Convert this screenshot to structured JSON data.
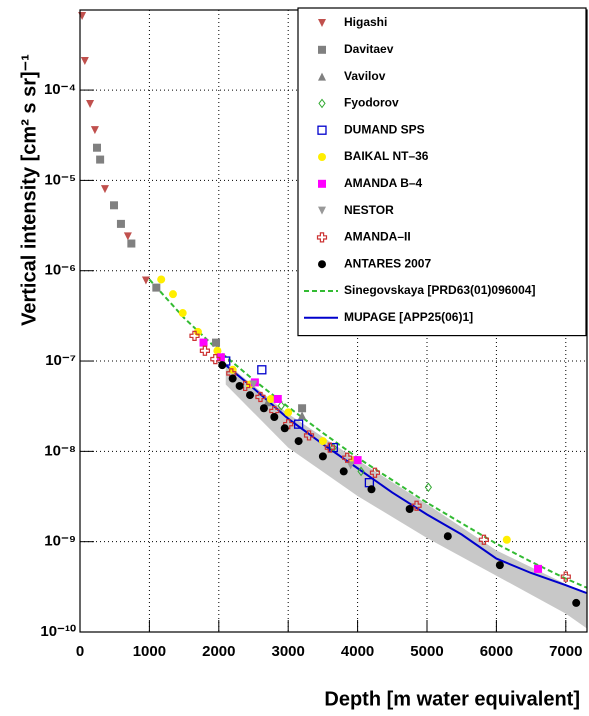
{
  "chart_data": {
    "type": "scatter",
    "xlabel": "Depth [m water equivalent]",
    "ylabel": "Vertical intensity [cm² s sr]⁻¹",
    "xlim": [
      0,
      7320
    ],
    "ylim": [
      1e-10,
      0.00077
    ],
    "log_y": true,
    "grid": true,
    "legend": "top-right",
    "xticks": [
      0,
      1000,
      2000,
      3000,
      4000,
      5000,
      6000,
      7000
    ],
    "yticks": [
      {
        "value": 1e-10,
        "label": "10⁻¹⁰"
      },
      {
        "value": 1e-09,
        "label": "10⁻⁹"
      },
      {
        "value": 1e-08,
        "label": "10⁻⁸"
      },
      {
        "value": 1e-07,
        "label": "10⁻⁷"
      },
      {
        "value": 1e-06,
        "label": "10⁻⁶"
      },
      {
        "value": 1e-05,
        "label": "10⁻⁵"
      },
      {
        "value": 0.0001,
        "label": "10⁻⁴"
      }
    ],
    "band": {
      "color": "#c8c8c8",
      "x": [
        2100,
        3000,
        4000,
        5000,
        6000,
        7000,
        7300
      ],
      "lower": [
        5.5e-08,
        1.1e-08,
        3.2e-09,
        1.1e-09,
        4.2e-10,
        1.6e-10,
        1.1e-10
      ],
      "upper": [
        9.5e-08,
        2.6e-08,
        8e-09,
        2.6e-09,
        8e-10,
        3.4e-10,
        2.6e-10
      ]
    },
    "series": [
      {
        "name": "Higashi",
        "color": "#c0504d",
        "marker": "triangle-down",
        "x": [
          30,
          70,
          145,
          215,
          360,
          690,
          950
        ],
        "values": [
          0.00066,
          0.00021,
          7e-05,
          3.6e-05,
          8e-06,
          2.4e-06,
          7.8e-07
        ]
      },
      {
        "name": "Davitaev",
        "color": "#808080",
        "marker": "square",
        "x": [
          245,
          290,
          490,
          590,
          740,
          1100,
          1960,
          3200
        ],
        "values": [
          2.3e-05,
          1.7e-05,
          5.3e-06,
          3.3e-06,
          2e-06,
          6.5e-07,
          1.6e-07,
          3e-08
        ]
      },
      {
        "name": "Vavilov",
        "color": "#808080",
        "marker": "triangle-up",
        "x": [
          1980,
          2700,
          3200
        ],
        "values": [
          1.4e-07,
          3.5e-08,
          2.5e-08
        ]
      },
      {
        "name": "Fyodorov",
        "color": "#33aa33",
        "marker": "diamond-open",
        "x": [
          2900,
          3650,
          4050,
          5020
        ],
        "values": [
          3.2e-08,
          1.1e-08,
          6e-09,
          4e-09
        ]
      },
      {
        "name": "DUMAND SPS",
        "color": "#0000cc",
        "marker": "square-open",
        "x": [
          2100,
          2620,
          3150,
          3650,
          4170
        ],
        "values": [
          1e-07,
          8e-08,
          2e-08,
          1.1e-08,
          4.5e-09
        ]
      },
      {
        "name": "BAIKAL NT–36",
        "color": "#ffee00",
        "marker": "circle",
        "x": [
          1170,
          1340,
          1480,
          1700,
          1980,
          2200,
          2450,
          2750,
          3000,
          3500,
          3950,
          6150
        ],
        "values": [
          8e-07,
          5.5e-07,
          3.4e-07,
          2.1e-07,
          1.3e-07,
          8e-08,
          5.5e-08,
          3.8e-08,
          2.7e-08,
          1.3e-08,
          8e-09,
          1.05e-09
        ]
      },
      {
        "name": "AMANDA B–4",
        "color": "#ff00ff",
        "marker": "square",
        "x": [
          1780,
          2030,
          2520,
          2850,
          4000,
          6600
        ],
        "values": [
          1.6e-07,
          1.1e-07,
          5.8e-08,
          3.8e-08,
          8e-09,
          5e-10
        ]
      },
      {
        "name": "NESTOR",
        "color": "#999999",
        "marker": "triangle-down",
        "x": [
          2500,
          3900
        ],
        "values": [
          5.5e-08,
          7e-09
        ]
      },
      {
        "name": "AMANDA–II",
        "color": "#cc3333",
        "marker": "cross-open",
        "x": [
          1650,
          1800,
          1950,
          2180,
          2380,
          2600,
          2800,
          3000,
          3300,
          3600,
          3850,
          4250,
          4850,
          5820,
          7000
        ],
        "values": [
          1.9e-07,
          1.3e-07,
          1.05e-07,
          7.3e-08,
          5.3e-08,
          4e-08,
          2.8e-08,
          2e-08,
          1.5e-08,
          1.1e-08,
          8.5e-09,
          5.8e-09,
          2.5e-09,
          1.05e-09,
          4.1e-10
        ]
      },
      {
        "name": "ANTARES 2007",
        "color": "#000000",
        "marker": "circle",
        "x": [
          2050,
          2200,
          2300,
          2450,
          2650,
          2800,
          2950,
          3150,
          3500,
          3800,
          4200,
          4750,
          5300,
          6050,
          7150
        ],
        "values": [
          9e-08,
          6.4e-08,
          5.3e-08,
          4.2e-08,
          3e-08,
          2.4e-08,
          1.8e-08,
          1.3e-08,
          8.8e-09,
          6e-09,
          3.8e-09,
          2.3e-09,
          1.15e-09,
          5.5e-10,
          2.1e-10
        ]
      },
      {
        "name": "Sinegovskaya [PRD63(01)096004]",
        "color": "#33bb33",
        "line_style": "dashed",
        "x": [
          1000,
          1500,
          2000,
          2500,
          3000,
          3500,
          4000,
          4500,
          5000,
          5500,
          6000,
          6500,
          7000,
          7300
        ],
        "values": [
          8e-07,
          3e-07,
          1.3e-07,
          6.2e-08,
          3.1e-08,
          1.6e-08,
          8.5e-09,
          4.8e-09,
          2.7e-09,
          1.6e-09,
          9.5e-10,
          6e-10,
          3.9e-10,
          3.1e-10
        ]
      },
      {
        "name": "MUPAGE [APP25(06)1]",
        "color": "#0000cc",
        "line_style": "solid",
        "x": [
          2100,
          2500,
          3000,
          3500,
          4000,
          4500,
          5000,
          5500,
          6000,
          6500,
          7000,
          7300
        ],
        "values": [
          9e-08,
          5e-08,
          2.3e-08,
          1.2e-08,
          6.5e-09,
          3.5e-09,
          2e-09,
          1.2e-09,
          6.5e-10,
          4.5e-10,
          3.3e-10,
          2.7e-10
        ]
      }
    ]
  }
}
